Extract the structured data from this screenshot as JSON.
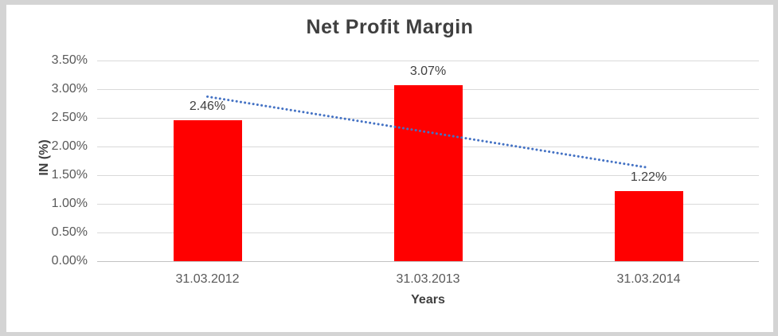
{
  "chart_data": {
    "type": "bar",
    "title": "Net Profit Margin",
    "xlabel": "Years",
    "ylabel": "IN (%)",
    "categories": [
      "31.03.2012",
      "31.03.2013",
      "31.03.2014"
    ],
    "values": [
      2.46,
      3.07,
      1.22
    ],
    "value_labels": [
      "2.46%",
      "3.07%",
      "1.22%"
    ],
    "ylim": [
      0,
      3.5
    ],
    "ytick_step": 0.5,
    "ytick_labels": [
      "0.00%",
      "0.50%",
      "1.00%",
      "1.50%",
      "2.00%",
      "2.50%",
      "3.00%",
      "3.50%"
    ],
    "grid": true,
    "legend": "none",
    "trendline": {
      "type": "linear",
      "style": "dotted",
      "start_value": 2.87,
      "end_value": 1.63
    },
    "colors": {
      "bar": "#ff0000",
      "trendline": "#4472c4",
      "gridline": "#d9d9d9",
      "axis_line": "#c3c3c3",
      "title_text": "#3f3f3f",
      "tick_text": "#595959",
      "frame_border": "#d4d4d4"
    }
  }
}
